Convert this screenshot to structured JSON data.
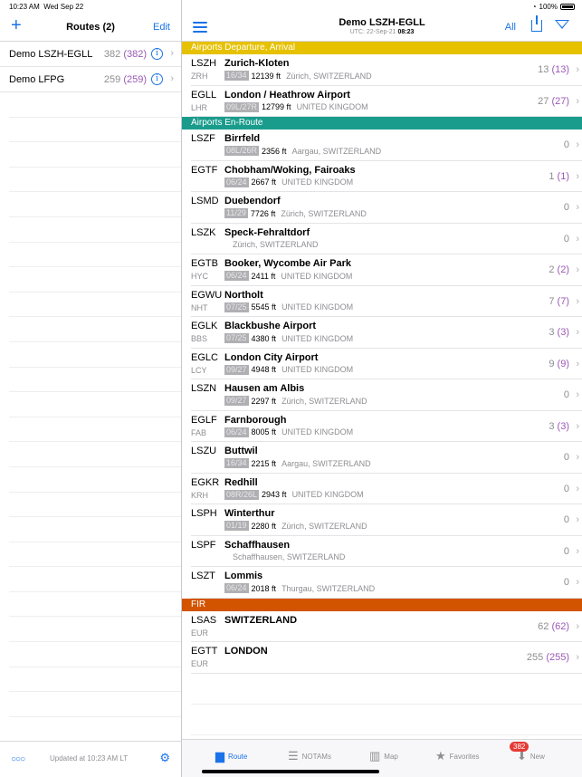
{
  "status": {
    "time": "10:23 AM",
    "date": "Wed Sep 22",
    "battery": "100%"
  },
  "left": {
    "title": "Routes (2)",
    "edit": "Edit",
    "routes": [
      {
        "name": "Demo LSZH-EGLL",
        "count": "382",
        "pcount": "(382)"
      },
      {
        "name": "Demo LFPG",
        "count": "259",
        "pcount": "(259)"
      }
    ],
    "updated": "Updated at 10:23 AM LT"
  },
  "header": {
    "title": "Demo LSZH-EGLL",
    "utc_prefix": "UTC: 22-Sep-21",
    "utc_time": "08:23",
    "all": "All"
  },
  "sections": [
    {
      "title": "Airports Departure, Arrival",
      "color": "#e6c100",
      "rows": [
        {
          "icao": "LSZH",
          "iata": "ZRH",
          "name": "Zurich-Kloten",
          "rwy": "16/34",
          "len": "12139 ft",
          "loc": "Zürich, SWITZERLAND",
          "count": "13",
          "pcount": "(13)"
        },
        {
          "icao": "EGLL",
          "iata": "LHR",
          "name": "London / Heathrow Airport",
          "rwy": "09L/27R",
          "len": "12799 ft",
          "loc": "UNITED KINGDOM",
          "count": "27",
          "pcount": "(27)"
        }
      ]
    },
    {
      "title": "Airports En-Route",
      "color": "#1a9c8c",
      "rows": [
        {
          "icao": "LSZF",
          "iata": "",
          "name": "Birrfeld",
          "rwy": "08L/26R",
          "len": "2356 ft",
          "loc": "Aargau, SWITZERLAND",
          "count": "0",
          "pcount": ""
        },
        {
          "icao": "EGTF",
          "iata": "",
          "name": "Chobham/Woking, Fairoaks",
          "rwy": "06/24",
          "len": "2667 ft",
          "loc": "UNITED KINGDOM",
          "count": "1",
          "pcount": "(1)"
        },
        {
          "icao": "LSMD",
          "iata": "",
          "name": "Duebendorf",
          "rwy": "11/29",
          "len": "7726 ft",
          "loc": "Zürich, SWITZERLAND",
          "count": "0",
          "pcount": ""
        },
        {
          "icao": "LSZK",
          "iata": "",
          "name": "Speck-Fehraltdorf",
          "rwy": "",
          "len": "",
          "loc": "Zürich, SWITZERLAND",
          "count": "0",
          "pcount": ""
        },
        {
          "icao": "EGTB",
          "iata": "HYC",
          "name": "Booker, Wycombe Air Park",
          "rwy": "06/24",
          "len": "2411 ft",
          "loc": "UNITED KINGDOM",
          "count": "2",
          "pcount": "(2)"
        },
        {
          "icao": "EGWU",
          "iata": "NHT",
          "name": "Northolt",
          "rwy": "07/25",
          "len": "5545 ft",
          "loc": "UNITED KINGDOM",
          "count": "7",
          "pcount": "(7)"
        },
        {
          "icao": "EGLK",
          "iata": "BBS",
          "name": "Blackbushe Airport",
          "rwy": "07/25",
          "len": "4380 ft",
          "loc": "UNITED KINGDOM",
          "count": "3",
          "pcount": "(3)"
        },
        {
          "icao": "EGLC",
          "iata": "LCY",
          "name": "London City Airport",
          "rwy": "09/27",
          "len": "4948 ft",
          "loc": "UNITED KINGDOM",
          "count": "9",
          "pcount": "(9)"
        },
        {
          "icao": "LSZN",
          "iata": "",
          "name": "Hausen am Albis",
          "rwy": "09/27",
          "len": "2297 ft",
          "loc": "Zürich, SWITZERLAND",
          "count": "0",
          "pcount": ""
        },
        {
          "icao": "EGLF",
          "iata": "FAB",
          "name": "Farnborough",
          "rwy": "06/24",
          "len": "8005 ft",
          "loc": "UNITED KINGDOM",
          "count": "3",
          "pcount": "(3)"
        },
        {
          "icao": "LSZU",
          "iata": "",
          "name": "Buttwil",
          "rwy": "16/34",
          "len": "2215 ft",
          "loc": "Aargau, SWITZERLAND",
          "count": "0",
          "pcount": ""
        },
        {
          "icao": "EGKR",
          "iata": "KRH",
          "name": "Redhill",
          "rwy": "08R/26L",
          "len": "2943 ft",
          "loc": "UNITED KINGDOM",
          "count": "0",
          "pcount": ""
        },
        {
          "icao": "LSPH",
          "iata": "",
          "name": "Winterthur",
          "rwy": "01/19",
          "len": "2280 ft",
          "loc": "Zürich, SWITZERLAND",
          "count": "0",
          "pcount": ""
        },
        {
          "icao": "LSPF",
          "iata": "",
          "name": "Schaffhausen",
          "rwy": "",
          "len": "",
          "loc": "Schaffhausen, SWITZERLAND",
          "count": "0",
          "pcount": ""
        },
        {
          "icao": "LSZT",
          "iata": "",
          "name": "Lommis",
          "rwy": "06/24",
          "len": "2018 ft",
          "loc": "Thurgau, SWITZERLAND",
          "count": "0",
          "pcount": ""
        }
      ]
    },
    {
      "title": "FIR",
      "color": "#d35400",
      "rows": [
        {
          "icao": "LSAS",
          "iata": "EUR",
          "name": "SWITZERLAND",
          "rwy": "",
          "len": "",
          "loc": "",
          "count": "62",
          "pcount": "(62)"
        },
        {
          "icao": "EGTT",
          "iata": "EUR",
          "name": "LONDON",
          "rwy": "",
          "len": "",
          "loc": "",
          "count": "255",
          "pcount": "(255)"
        }
      ]
    }
  ],
  "tabs": [
    {
      "label": "Route",
      "icon": "folder-icon",
      "glyph": "▆",
      "active": true
    },
    {
      "label": "NOTAMs",
      "icon": "list-icon",
      "glyph": "☰",
      "active": false
    },
    {
      "label": "Map",
      "icon": "map-icon",
      "glyph": "▥",
      "active": false
    },
    {
      "label": "Favorites",
      "icon": "star-icon",
      "glyph": "★",
      "active": false
    },
    {
      "label": "New",
      "icon": "inbox-icon",
      "glyph": "⬇",
      "active": false
    }
  ],
  "new_badge": "382"
}
